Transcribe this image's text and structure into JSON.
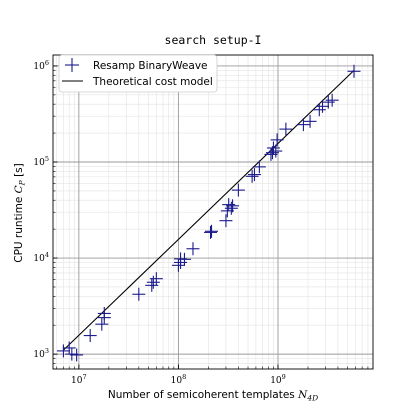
{
  "chart_data": {
    "type": "scatter",
    "title": "search setup-I",
    "xlabel": "Number of semicoherent templates",
    "xlabel_symbol": "N",
    "xlabel_subscript": "4D",
    "ylabel": "CPU runtime",
    "ylabel_symbol": "C",
    "ylabel_subscript": "P",
    "ylabel_unit": "[s]",
    "xscale": "log",
    "yscale": "log",
    "xlim": [
      5500000.0,
      9000000000.0
    ],
    "ylim": [
      700,
      1300000.0
    ],
    "grid": true,
    "legend_position": "top-left",
    "x_ticks": [
      {
        "value": 10000000.0,
        "base": "10",
        "exp": "7"
      },
      {
        "value": 100000000.0,
        "base": "10",
        "exp": "8"
      },
      {
        "value": 1000000000.0,
        "base": "10",
        "exp": "9"
      }
    ],
    "y_ticks": [
      {
        "value": 1000.0,
        "base": "10",
        "exp": "3"
      },
      {
        "value": 10000.0,
        "base": "10",
        "exp": "4"
      },
      {
        "value": 100000.0,
        "base": "10",
        "exp": "5"
      },
      {
        "value": 1000000.0,
        "base": "10",
        "exp": "6"
      }
    ],
    "series": [
      {
        "name": "Resamp BinaryWeave",
        "kind": "scatter",
        "marker": "plus",
        "color": "#1a1a8c",
        "points": [
          [
            7000000.0,
            1080
          ],
          [
            8000000.0,
            1160
          ],
          [
            8500000.0,
            1000
          ],
          [
            9500000.0,
            980
          ],
          [
            13000000.0,
            1560
          ],
          [
            17000000.0,
            2050
          ],
          [
            18000000.0,
            2400
          ],
          [
            18000000.0,
            2650
          ],
          [
            40000000.0,
            4200
          ],
          [
            54000000.0,
            5200
          ],
          [
            56000000.0,
            5600
          ],
          [
            60000000.0,
            6100
          ],
          [
            100000000.0,
            8400
          ],
          [
            105000000.0,
            9000
          ],
          [
            105000000.0,
            9800
          ],
          [
            115000000.0,
            9700
          ],
          [
            140000000.0,
            12500
          ],
          [
            210000000.0,
            18500
          ],
          [
            215000000.0,
            19000
          ],
          [
            300000000.0,
            24500
          ],
          [
            310000000.0,
            31000
          ],
          [
            320000000.0,
            36000
          ],
          [
            340000000.0,
            33000
          ],
          [
            350000000.0,
            35000
          ],
          [
            400000000.0,
            51000
          ],
          [
            550000000.0,
            71000
          ],
          [
            580000000.0,
            74000
          ],
          [
            650000000.0,
            89000
          ],
          [
            850000000.0,
            120000
          ],
          [
            880000000.0,
            125000
          ],
          [
            900000000.0,
            140000
          ],
          [
            950000000.0,
            130000
          ],
          [
            980000000.0,
            170000
          ],
          [
            1200000000.0,
            220000
          ],
          [
            1800000000.0,
            245000
          ],
          [
            2100000000.0,
            265000
          ],
          [
            2600000000.0,
            350000
          ],
          [
            2800000000.0,
            380000
          ],
          [
            3200000000.0,
            420000
          ],
          [
            3500000000.0,
            440000
          ],
          [
            5800000000.0,
            880000
          ]
        ]
      },
      {
        "name": "Theoretical cost model",
        "kind": "line",
        "color": "#000000",
        "points": [
          [
            7000000.0,
            1100
          ],
          [
            5800000000.0,
            900000
          ]
        ]
      }
    ]
  }
}
